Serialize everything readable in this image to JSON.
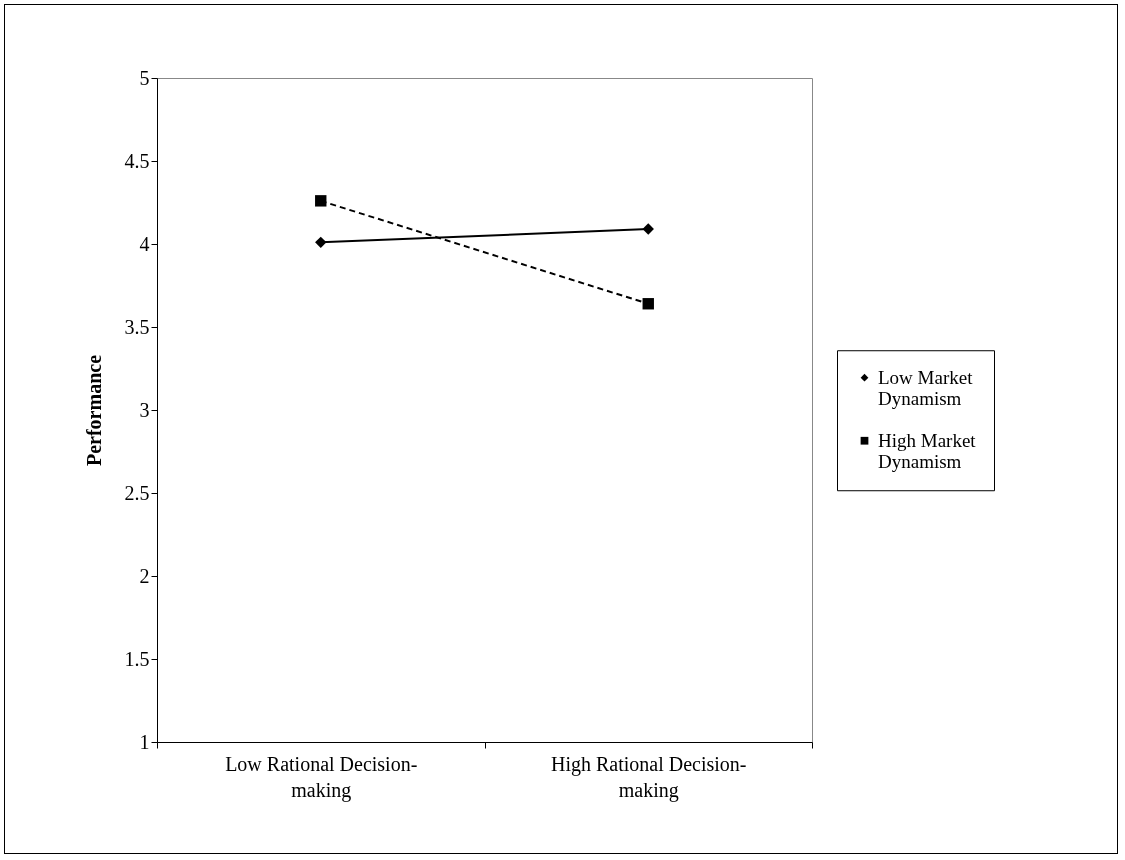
{
  "chart_data": {
    "type": "line",
    "ylabel": "Performance",
    "categories": [
      "Low Rational Decision-making",
      "High Rational Decision-making"
    ],
    "series": [
      {
        "name": "Low Market Dynamism",
        "color": "#000000",
        "marker": "diamond",
        "line_style": "solid",
        "values": [
          4.01,
          4.09
        ]
      },
      {
        "name": "High Market Dynamism",
        "color": "#000000",
        "marker": "square",
        "line_style": "dashed",
        "values": [
          4.26,
          3.64
        ]
      }
    ],
    "ylim": [
      1,
      5
    ],
    "yticks": [
      1,
      1.5,
      2,
      2.5,
      3,
      3.5,
      4,
      4.5,
      5
    ],
    "grid": false,
    "legend": "right"
  }
}
